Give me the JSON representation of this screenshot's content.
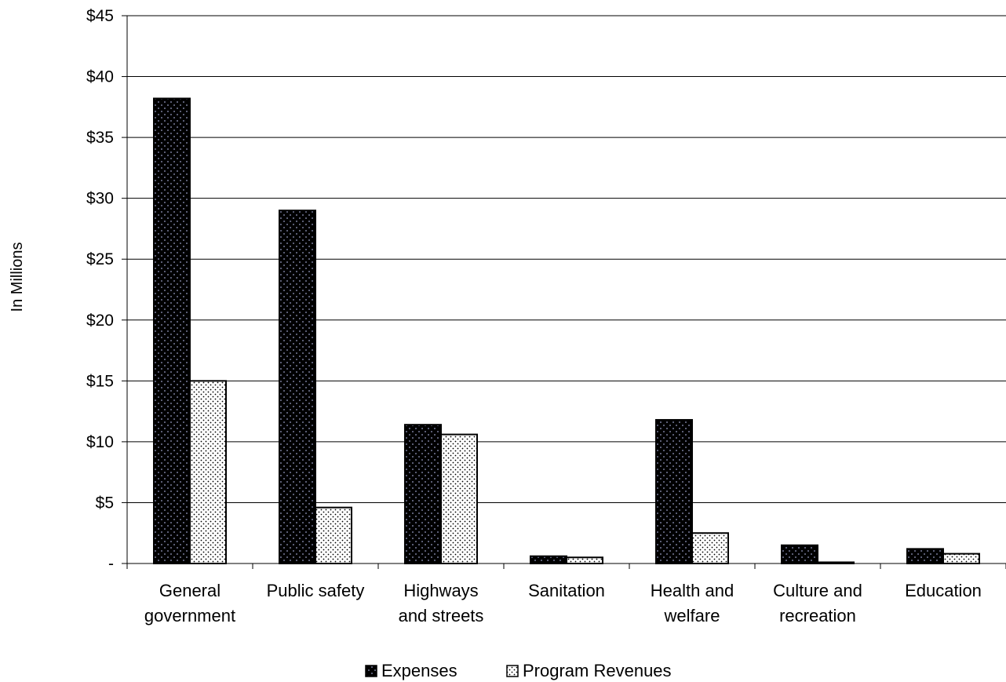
{
  "chart_data": {
    "type": "bar",
    "title": "",
    "xlabel": "",
    "ylabel": "In Millions",
    "ylim": [
      0,
      45
    ],
    "y_ticks": [
      {
        "value": 0,
        "label": "-"
      },
      {
        "value": 5,
        "label": "$5"
      },
      {
        "value": 10,
        "label": "$10"
      },
      {
        "value": 15,
        "label": "$15"
      },
      {
        "value": 20,
        "label": "$20"
      },
      {
        "value": 25,
        "label": "$25"
      },
      {
        "value": 30,
        "label": "$30"
      },
      {
        "value": 35,
        "label": "$35"
      },
      {
        "value": 40,
        "label": "$40"
      },
      {
        "value": 45,
        "label": "$45"
      }
    ],
    "grid": true,
    "legend_position": "bottom",
    "categories": [
      [
        "General",
        "government"
      ],
      [
        "Public safety"
      ],
      [
        "Highways",
        "and streets"
      ],
      [
        "Sanitation"
      ],
      [
        "Health and",
        "welfare"
      ],
      [
        "Culture and",
        "recreation"
      ],
      [
        "Education"
      ]
    ],
    "series": [
      {
        "name": "Expenses",
        "color": "#000000",
        "pattern": "dark-dotted",
        "values": [
          38.2,
          29.0,
          11.4,
          0.6,
          11.8,
          1.5,
          1.2
        ]
      },
      {
        "name": "Program Revenues",
        "color": "#ffffff",
        "pattern": "light-dotted",
        "values": [
          15.0,
          4.6,
          10.6,
          0.5,
          2.5,
          0.1,
          0.8
        ]
      }
    ]
  }
}
